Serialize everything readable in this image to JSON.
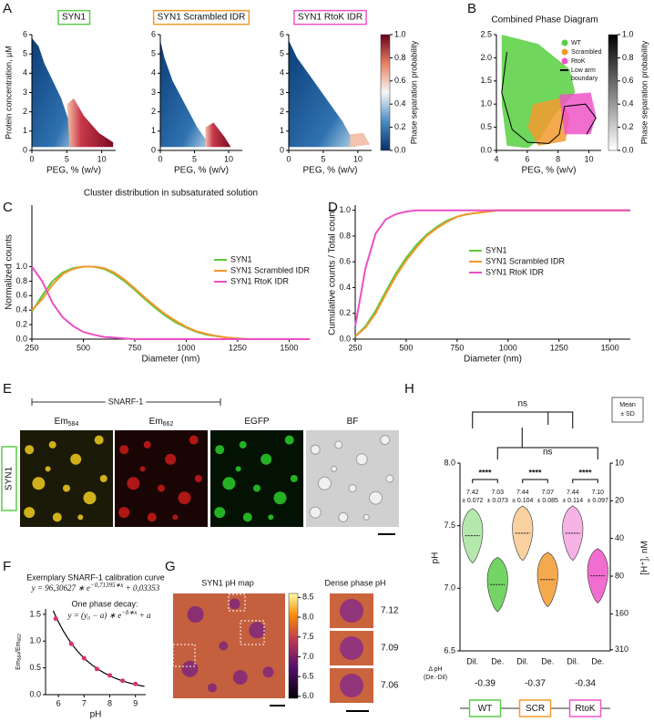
{
  "panel_labels": [
    "A",
    "B",
    "C",
    "D",
    "E",
    "F",
    "G",
    "H"
  ],
  "chart_data": [
    {
      "type": "heatmap",
      "title": "SYN1",
      "title_color": "#5ccc4a",
      "xlabel": "PEG, % (w/v)",
      "ylabel": "Protein concentration, µM",
      "xlim": [
        0,
        12
      ],
      "xticks": [
        0,
        5,
        10
      ],
      "ylim": [
        0,
        6
      ],
      "yticks": [
        0,
        1,
        2,
        3,
        4,
        5,
        6
      ]
    },
    {
      "type": "heatmap",
      "title": "SYN1 Scrambled IDR",
      "title_color": "#f39a2f",
      "xlabel": "PEG, % (w/v)",
      "xlim": [
        0,
        12
      ],
      "xticks": [
        0,
        5,
        10
      ],
      "ylim": [
        0,
        6
      ],
      "yticks": [
        0,
        1,
        2,
        3,
        4,
        5,
        6
      ]
    },
    {
      "type": "heatmap",
      "title": "SYN1 RtoK IDR",
      "title_color": "#ee55c8",
      "xlabel": "PEG, % (w/v)",
      "xlim": [
        0,
        12
      ],
      "xticks": [
        0,
        5,
        10
      ],
      "ylim": [
        0,
        6
      ],
      "yticks": [
        0,
        1,
        2,
        3,
        4,
        5,
        6
      ],
      "colorbar": {
        "label": "Phase separation probability",
        "lim": [
          0,
          1
        ],
        "ticks": [
          {
            "value": 0,
            "label": "0.0"
          },
          0.2,
          0.4,
          0.6,
          0.8,
          {
            "value": 1,
            "label": "1.0"
          }
        ]
      }
    },
    {
      "type": "phase",
      "title": "Combined Phase Diagram",
      "xlabel": "PEG, % (w/v)",
      "xlim": [
        4,
        10.8
      ],
      "xticks": [
        4,
        6,
        8,
        10
      ],
      "ylim": [
        0,
        2.5
      ],
      "yticks": [
        {
          "value": 0,
          "label": "0.0"
        },
        0.5,
        {
          "value": 1,
          "label": "1.0"
        },
        1.5,
        {
          "value": 2,
          "label": "2.0"
        },
        2.5
      ],
      "series": [
        {
          "name": "WT",
          "color": "#57cf3f"
        },
        {
          "name": "Scrambled",
          "color": "#f39a2f"
        },
        {
          "name": "RtoK",
          "color": "#ee55c8"
        }
      ],
      "boundary": {
        "name": [
          "Low arm",
          "boundary"
        ],
        "color": "#000000"
      },
      "colorbar": {
        "label": "Phase separation probability",
        "lim": [
          0,
          1
        ],
        "ticks": [
          {
            "value": 0,
            "label": "0.0"
          },
          0.2,
          0.4,
          0.6,
          0.8,
          {
            "value": 1,
            "label": "1.0"
          }
        ]
      }
    },
    {
      "type": "line",
      "title": "Cluster distribution in subsaturated solution",
      "xlabel": "Diameter (nm)",
      "ylabel": "Normalized counts",
      "x": [
        250,
        300,
        350,
        400,
        450,
        500,
        550,
        600,
        650,
        700,
        750,
        800,
        850,
        900,
        950,
        1000,
        1050,
        1100,
        1150,
        1200,
        1250,
        1300,
        1350,
        1400,
        1450,
        1500,
        1550,
        1600
      ],
      "series": [
        {
          "name": "SYN1",
          "color": "#5bc83a",
          "values": [
            0.38,
            0.6,
            0.8,
            0.92,
            0.98,
            1.0,
            1.0,
            0.97,
            0.9,
            0.8,
            0.68,
            0.55,
            0.43,
            0.32,
            0.23,
            0.16,
            0.1,
            0.06,
            0.04,
            0.02,
            0.01,
            0,
            0,
            0,
            0,
            0,
            0,
            0
          ]
        },
        {
          "name": "SYN1 Scrambled IDR",
          "color": "#f3962a",
          "values": [
            0.4,
            0.55,
            0.75,
            0.9,
            0.97,
            1.0,
            1.0,
            0.98,
            0.92,
            0.82,
            0.7,
            0.57,
            0.45,
            0.34,
            0.25,
            0.17,
            0.11,
            0.07,
            0.04,
            0.02,
            0.01,
            0,
            0,
            0,
            0,
            0,
            0,
            0
          ]
        },
        {
          "name": "SYN1 RtoK IDR",
          "color": "#ec4fc4",
          "values": [
            1.0,
            0.8,
            0.5,
            0.3,
            0.18,
            0.1,
            0.06,
            0.03,
            0.02,
            0.01,
            0,
            0,
            0,
            0,
            0,
            0,
            0,
            0,
            0,
            0,
            0,
            0,
            0,
            0,
            0,
            0,
            0,
            0
          ]
        }
      ],
      "xlim": [
        250,
        1600
      ],
      "xticks": [
        250,
        500,
        750,
        1000,
        1250,
        1500
      ],
      "ylim": [
        0,
        1.85
      ],
      "yticks": [
        {
          "value": 0,
          "label": "0.0"
        },
        0.2,
        0.4,
        0.6,
        0.8,
        {
          "value": 1,
          "label": "1.0"
        }
      ]
    },
    {
      "type": "line",
      "xlabel": "Diameter (nm)",
      "ylabel": "Cumulative counts / Total count",
      "x": [
        250,
        300,
        350,
        400,
        450,
        500,
        550,
        600,
        650,
        700,
        750,
        800,
        850,
        900,
        950,
        1000,
        1050,
        1100,
        1150,
        1200,
        1250,
        1300,
        1350,
        1400,
        1450,
        1500,
        1550,
        1600
      ],
      "series": [
        {
          "name": "SYN1",
          "color": "#5bc83a",
          "values": [
            0.02,
            0.1,
            0.22,
            0.37,
            0.51,
            0.63,
            0.73,
            0.81,
            0.87,
            0.92,
            0.95,
            0.97,
            0.98,
            0.99,
            1,
            1,
            1,
            1,
            1,
            1,
            1,
            1,
            1,
            1,
            1,
            1,
            1,
            1
          ]
        },
        {
          "name": "SYN1 Scrambled IDR",
          "color": "#f3962a",
          "values": [
            0.02,
            0.09,
            0.2,
            0.35,
            0.49,
            0.61,
            0.71,
            0.8,
            0.86,
            0.91,
            0.95,
            0.97,
            0.98,
            0.99,
            1,
            1,
            1,
            1,
            1,
            1,
            1,
            1,
            1,
            1,
            1,
            1,
            1,
            1
          ]
        },
        {
          "name": "SYN1 RtoK IDR",
          "color": "#ec4fc4",
          "values": [
            0.1,
            0.55,
            0.82,
            0.93,
            0.97,
            0.99,
            1,
            1,
            1,
            1,
            1,
            1,
            1,
            1,
            1,
            1,
            1,
            1,
            1,
            1,
            1,
            1,
            1,
            1,
            1,
            1,
            1,
            1
          ]
        }
      ],
      "xlim": [
        250,
        1600
      ],
      "xticks": [
        250,
        500,
        750,
        1000,
        1250,
        1500
      ],
      "ylim": [
        0,
        1.04
      ],
      "yticks": [
        {
          "value": 0,
          "label": "0.0"
        },
        0.2,
        0.4,
        0.6,
        0.8,
        {
          "value": 1,
          "label": "1.0"
        }
      ]
    },
    {
      "type": "calibration",
      "title": "Exemplary SNARF-1 calibration curve",
      "fit_formula": {
        "base": "y = 96,30627 ∗ e",
        "exponent": "−0,71395∗x",
        "tail": " + 0,03353"
      },
      "note": "One phase decay:",
      "model_formula": {
        "base": "y = (y₀ − a) ∗ e",
        "exponent": "−b∗x",
        "tail": " + a"
      },
      "fit": {
        "amplitude": 96.30627,
        "rate": 0.71395,
        "offset": 0.03353
      },
      "xlabel": "pH",
      "ylabel": [
        {
          "text": "Em"
        },
        {
          "text": "584",
          "sub": true
        },
        {
          "text": "/Em"
        },
        {
          "text": "662",
          "sub": true
        }
      ],
      "x": [
        5.9,
        6.5,
        7,
        7.5,
        8,
        8.5,
        9
      ],
      "values": [
        1.42,
        0.95,
        0.68,
        0.48,
        0.36,
        0.26,
        0.2
      ],
      "color": "#d6336c",
      "xlim": [
        5.5,
        9.4
      ],
      "xticks": [
        6,
        7,
        8,
        9
      ],
      "ylim": [
        0,
        1.6
      ],
      "yticks": [
        {
          "value": 0,
          "label": "0.0"
        },
        0.5,
        {
          "value": 1,
          "label": "1.0"
        },
        1.5
      ]
    },
    {
      "type": "violin",
      "ylabel": "pH",
      "y2label": "[H⁺], nM",
      "categories": [
        "Dil.",
        "De.",
        "Dil.",
        "De.",
        "Dil.",
        "De."
      ],
      "groups": [
        {
          "name": "WT",
          "color": "#5ccc4a"
        },
        {
          "name": "SCR",
          "color": "#f39a2f"
        },
        {
          "name": "RtoK",
          "color": "#ee55c8"
        }
      ],
      "values": [
        7.42,
        7.03,
        7.44,
        7.07,
        7.44,
        7.1
      ],
      "value_labels": [
        "7.42",
        "7.03",
        "7.44",
        "7.07",
        "7.44",
        "7.10"
      ],
      "sd_labels": [
        "± 0.072",
        "± 0.073",
        "± 0.104",
        "± 0.085",
        "± 0.114",
        "± 0.097"
      ],
      "significance": [
        "****",
        "****",
        "****"
      ],
      "ns": [
        "ns",
        "ns"
      ],
      "stat_box": [
        "Mean",
        "± SD"
      ],
      "delta_label": [
        "Δ pH",
        "(De.-Dil)"
      ],
      "deltas": [
        "-0.39",
        "-0.37",
        "-0.34"
      ],
      "ylim": [
        6.5,
        8.0
      ],
      "yticks": [
        6.5,
        {
          "value": 7,
          "label": "7.0"
        },
        7.5,
        {
          "value": 8,
          "label": "8.0"
        }
      ],
      "y2lim": [
        10,
        316.2
      ],
      "y2ticks": [
        10,
        20,
        40,
        80,
        160,
        310
      ],
      "y2scale": "log"
    }
  ],
  "panel_E": {
    "label": "SNARF-1",
    "row_label": "SYN1",
    "channels": [
      {
        "text": "Em",
        "sub": "584"
      },
      {
        "text": "Em",
        "sub": "662"
      },
      {
        "text": "EGFP"
      },
      {
        "text": "BF"
      }
    ]
  },
  "panel_G": {
    "title": "SYN1 pH map",
    "dense_title": "Dense phase pH",
    "dense_values": [
      "7.12",
      "7.09",
      "7.06"
    ],
    "colorbar": {
      "lim": [
        5.95,
        8.6
      ],
      "ticks": [
        {
          "value": 6,
          "label": "6.0"
        },
        6.5,
        {
          "value": 7,
          "label": "7.0"
        },
        7.5,
        {
          "value": 8,
          "label": "8.0"
        },
        8.5
      ]
    }
  }
}
